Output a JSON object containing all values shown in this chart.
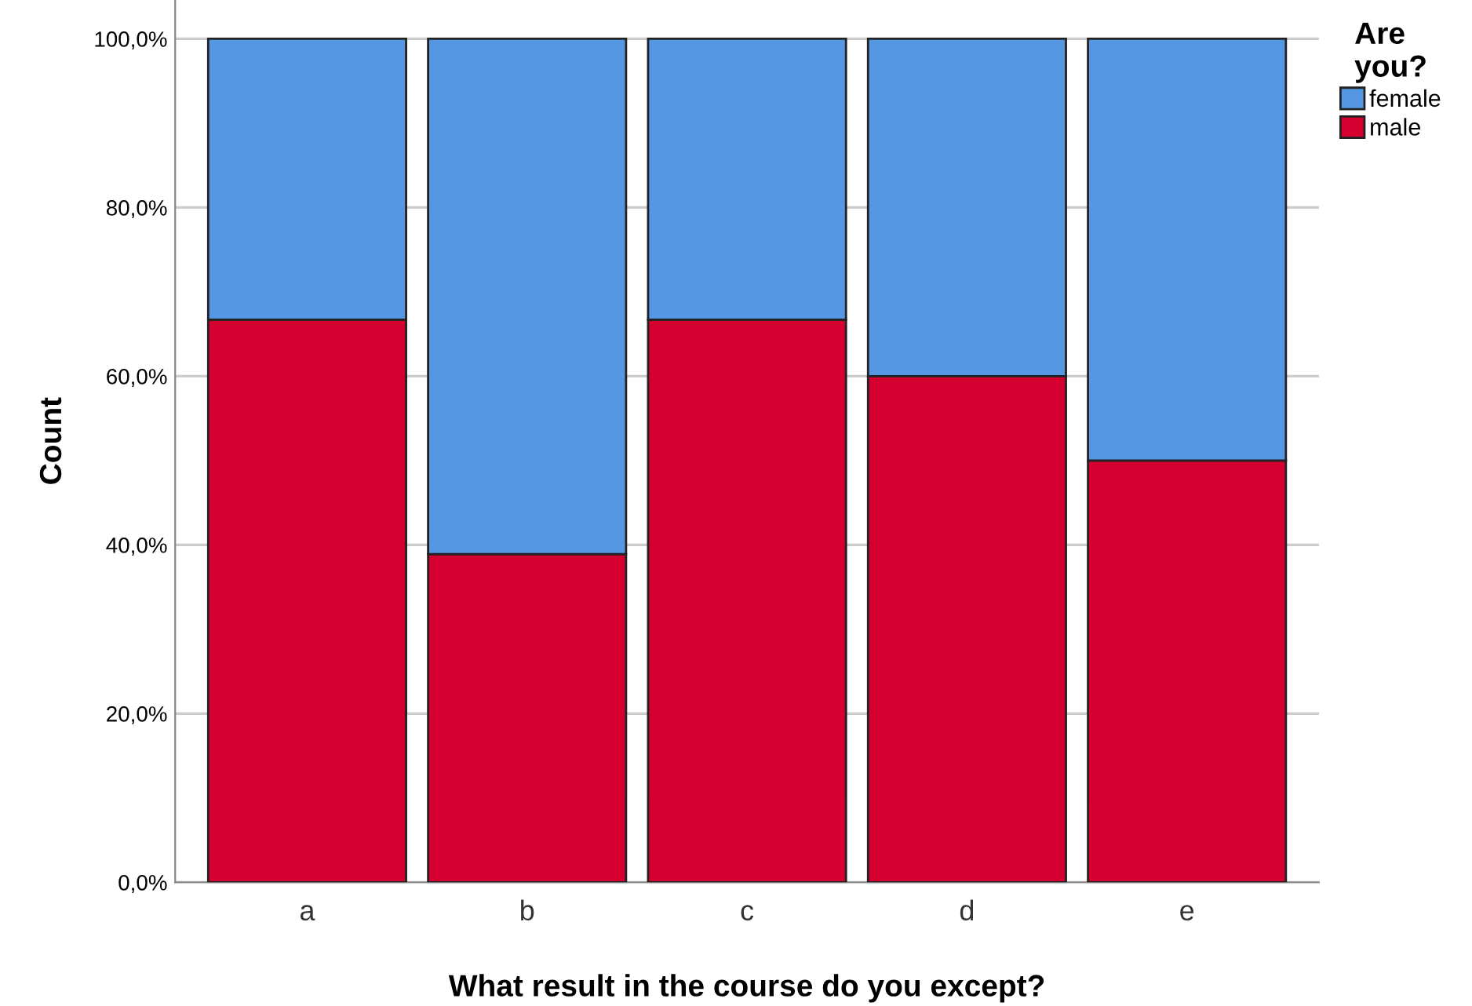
{
  "chart_data": {
    "type": "bar",
    "stacked": true,
    "xlabel": "What result in the course do you except?",
    "ylabel": "Count",
    "legend_title": "Are\nyou?",
    "categories": [
      "a",
      "b",
      "c",
      "d",
      "e"
    ],
    "series": [
      {
        "name": "male",
        "color": "#d5002f",
        "values": [
          66.7,
          38.9,
          66.7,
          60.0,
          50.0
        ]
      },
      {
        "name": "female",
        "color": "#5597e2",
        "values": [
          33.3,
          61.1,
          33.3,
          40.0,
          50.0
        ]
      }
    ],
    "ylim": [
      0,
      104.6
    ],
    "yticks": [
      {
        "value": 0,
        "label": "0,0%"
      },
      {
        "value": 20,
        "label": "20,0%"
      },
      {
        "value": 40,
        "label": "40,0%"
      },
      {
        "value": 60,
        "label": "60,0%"
      },
      {
        "value": 80,
        "label": "80,0%"
      },
      {
        "value": 100,
        "label": "100,0%"
      }
    ],
    "grid": "y",
    "legend": "top right"
  }
}
